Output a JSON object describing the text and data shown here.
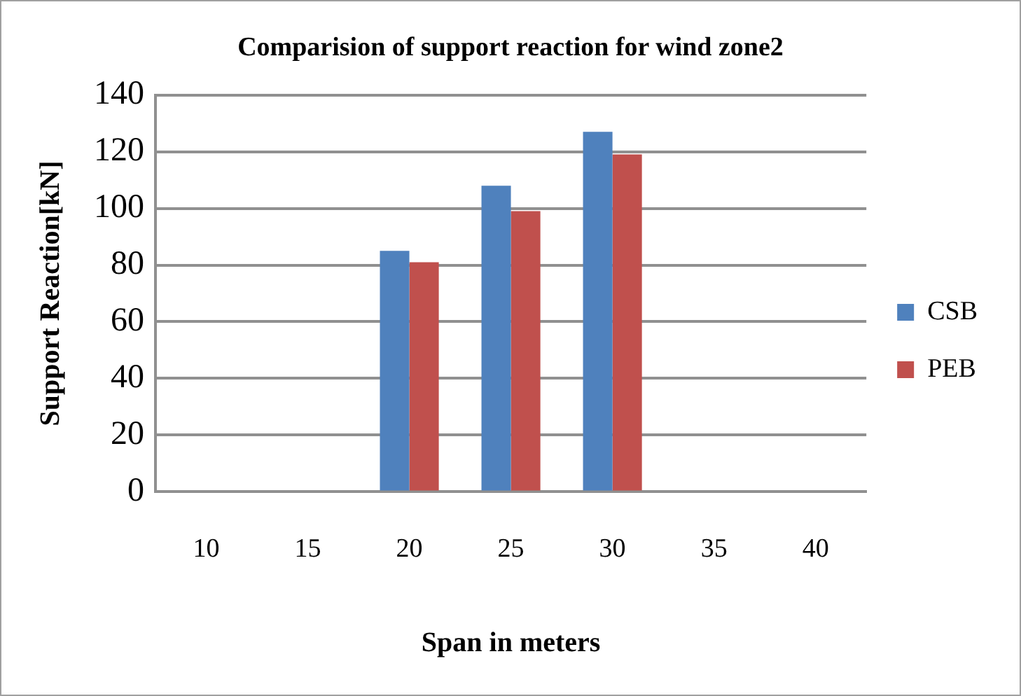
{
  "chart_data": {
    "type": "bar",
    "title": "Comparision of support reaction for wind zone2",
    "xlabel": "Span in meters",
    "ylabel": "Support Reaction[kN]",
    "categories": [
      "10",
      "15",
      "20",
      "25",
      "30",
      "35",
      "40"
    ],
    "series": [
      {
        "name": "CSB",
        "color": "#4f81bd",
        "values": [
          null,
          null,
          85,
          108,
          127,
          null,
          null
        ]
      },
      {
        "name": "PEB",
        "color": "#c0504d",
        "values": [
          null,
          null,
          81,
          99,
          119,
          null,
          null
        ]
      }
    ],
    "ylim": [
      0,
      140
    ],
    "yticks": [
      0,
      20,
      40,
      60,
      80,
      100,
      120,
      140
    ],
    "grid": "y",
    "legend": "right"
  }
}
